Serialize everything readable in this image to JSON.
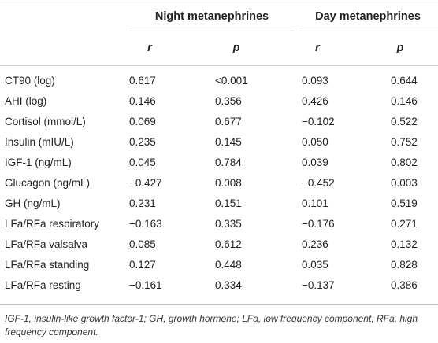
{
  "table": {
    "groups": [
      "Night metanephrines",
      "Day metanephrines"
    ],
    "subheaders": [
      "r",
      "p",
      "r",
      "p"
    ],
    "rows": [
      {
        "label": "CT90 (log)",
        "values": [
          "0.617",
          "<0.001",
          "0.093",
          "0.644"
        ]
      },
      {
        "label": "AHI (log)",
        "values": [
          "0.146",
          "0.356",
          "0.426",
          "0.146"
        ]
      },
      {
        "label": "Cortisol (mmol/L)",
        "values": [
          "0.069",
          "0.677",
          "−0.102",
          "0.522"
        ]
      },
      {
        "label": "Insulin (mIU/L)",
        "values": [
          "0.235",
          "0.145",
          "0.050",
          "0.752"
        ]
      },
      {
        "label": "IGF-1 (ng/mL)",
        "values": [
          "0.045",
          "0.784",
          "0.039",
          "0.802"
        ]
      },
      {
        "label": "Glucagon (pg/mL)",
        "values": [
          "−0.427",
          "0.008",
          "−0.452",
          "0.003"
        ]
      },
      {
        "label": "GH (ng/mL)",
        "values": [
          "0.231",
          "0.151",
          "0.101",
          "0.519"
        ]
      },
      {
        "label": "LFa/RFa respiratory",
        "values": [
          "−0.163",
          "0.335",
          "−0.176",
          "0.271"
        ]
      },
      {
        "label": "LFa/RFa valsalva",
        "values": [
          "0.085",
          "0.612",
          "0.236",
          "0.132"
        ]
      },
      {
        "label": "LFa/RFa standing",
        "values": [
          "0.127",
          "0.448",
          "0.035",
          "0.828"
        ]
      },
      {
        "label": "LFa/RFa resting",
        "values": [
          "−0.161",
          "0.334",
          "−0.137",
          "0.386"
        ]
      }
    ],
    "footnote": "IGF-1, insulin-like growth factor-1; GH, growth hormone; LFa, low frequency component; RFa, high frequency component."
  }
}
